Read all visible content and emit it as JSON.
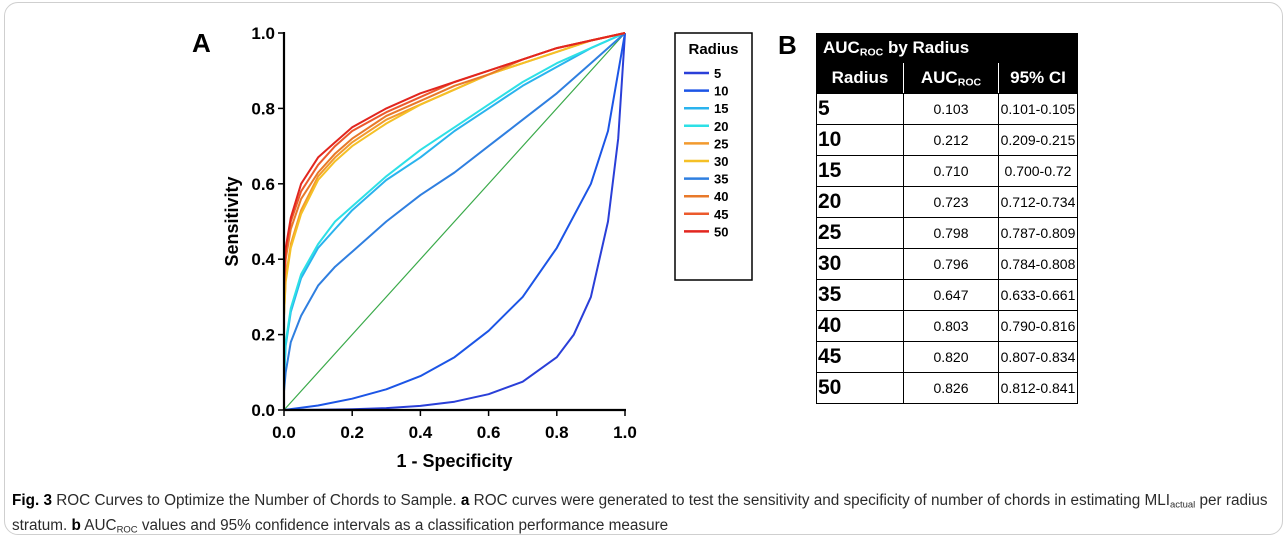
{
  "panel_a_letter": "A",
  "panel_b_letter": "B",
  "chart_data": {
    "type": "line",
    "xlabel": "1 - Specificity",
    "ylabel": "Sensitivity",
    "xlim": [
      0,
      1
    ],
    "ylim": [
      0,
      1
    ],
    "xticks": [
      "0.0",
      "0.2",
      "0.4",
      "0.6",
      "0.8",
      "1.0"
    ],
    "yticks": [
      "0.0",
      "0.2",
      "0.4",
      "0.6",
      "0.8",
      "1.0"
    ],
    "legend_title": "Radius",
    "legend_position": "right",
    "reference_line": {
      "x": [
        0,
        1
      ],
      "y": [
        0,
        1
      ],
      "color": "#3aaa4a"
    },
    "series": [
      {
        "name": "5",
        "color": "#2a3fd8",
        "x": [
          0,
          0.1,
          0.2,
          0.3,
          0.4,
          0.5,
          0.6,
          0.7,
          0.8,
          0.85,
          0.9,
          0.95,
          0.98,
          1.0
        ],
        "y": [
          0,
          0.0005,
          0.002,
          0.005,
          0.011,
          0.022,
          0.042,
          0.075,
          0.14,
          0.2,
          0.3,
          0.5,
          0.72,
          1.0
        ]
      },
      {
        "name": "10",
        "color": "#1c55e6",
        "x": [
          0,
          0.1,
          0.2,
          0.3,
          0.4,
          0.5,
          0.6,
          0.7,
          0.8,
          0.9,
          0.95,
          1.0
        ],
        "y": [
          0,
          0.012,
          0.03,
          0.055,
          0.09,
          0.14,
          0.21,
          0.3,
          0.43,
          0.6,
          0.74,
          1.0
        ]
      },
      {
        "name": "15",
        "color": "#2ab3ee",
        "x": [
          0,
          0.005,
          0.02,
          0.05,
          0.1,
          0.15,
          0.2,
          0.3,
          0.4,
          0.5,
          0.6,
          0.7,
          0.8,
          0.9,
          1.0
        ],
        "y": [
          0.08,
          0.17,
          0.26,
          0.35,
          0.43,
          0.48,
          0.53,
          0.61,
          0.67,
          0.74,
          0.8,
          0.86,
          0.91,
          0.96,
          1.0
        ]
      },
      {
        "name": "20",
        "color": "#2de0e6",
        "x": [
          0,
          0.005,
          0.02,
          0.05,
          0.1,
          0.15,
          0.2,
          0.3,
          0.4,
          0.5,
          0.6,
          0.7,
          0.8,
          0.9,
          1.0
        ],
        "y": [
          0.08,
          0.18,
          0.27,
          0.36,
          0.44,
          0.5,
          0.54,
          0.62,
          0.69,
          0.75,
          0.81,
          0.87,
          0.92,
          0.96,
          1.0
        ]
      },
      {
        "name": "25",
        "color": "#f29a2e",
        "x": [
          0,
          0.005,
          0.02,
          0.05,
          0.1,
          0.15,
          0.2,
          0.3,
          0.4,
          0.5,
          0.6,
          0.7,
          0.8,
          0.9,
          1.0
        ],
        "y": [
          0.25,
          0.35,
          0.44,
          0.53,
          0.62,
          0.67,
          0.71,
          0.77,
          0.81,
          0.85,
          0.89,
          0.92,
          0.95,
          0.98,
          1.0
        ]
      },
      {
        "name": "30",
        "color": "#f5c026",
        "x": [
          0,
          0.005,
          0.02,
          0.05,
          0.1,
          0.15,
          0.2,
          0.3,
          0.4,
          0.5,
          0.6,
          0.7,
          0.8,
          0.9,
          1.0
        ],
        "y": [
          0.25,
          0.34,
          0.43,
          0.52,
          0.61,
          0.66,
          0.7,
          0.76,
          0.81,
          0.85,
          0.89,
          0.92,
          0.95,
          0.98,
          1.0
        ]
      },
      {
        "name": "35",
        "color": "#2f7fe0",
        "x": [
          0,
          0.005,
          0.02,
          0.05,
          0.1,
          0.15,
          0.2,
          0.3,
          0.4,
          0.5,
          0.6,
          0.7,
          0.8,
          0.9,
          1.0
        ],
        "y": [
          0.05,
          0.1,
          0.18,
          0.25,
          0.33,
          0.38,
          0.42,
          0.5,
          0.57,
          0.63,
          0.7,
          0.77,
          0.84,
          0.92,
          1.0
        ]
      },
      {
        "name": "40",
        "color": "#e8792a",
        "x": [
          0,
          0.005,
          0.02,
          0.05,
          0.1,
          0.15,
          0.2,
          0.3,
          0.4,
          0.5,
          0.6,
          0.7,
          0.8,
          0.9,
          1.0
        ],
        "y": [
          0.3,
          0.4,
          0.48,
          0.56,
          0.63,
          0.68,
          0.72,
          0.78,
          0.82,
          0.86,
          0.89,
          0.93,
          0.96,
          0.98,
          1.0
        ]
      },
      {
        "name": "45",
        "color": "#ec5a2c",
        "x": [
          0,
          0.005,
          0.02,
          0.05,
          0.1,
          0.15,
          0.2,
          0.3,
          0.4,
          0.5,
          0.6,
          0.7,
          0.8,
          0.9,
          1.0
        ],
        "y": [
          0.33,
          0.42,
          0.5,
          0.58,
          0.65,
          0.7,
          0.74,
          0.79,
          0.83,
          0.87,
          0.9,
          0.93,
          0.96,
          0.98,
          1.0
        ]
      },
      {
        "name": "50",
        "color": "#e2261f",
        "x": [
          0,
          0.005,
          0.02,
          0.05,
          0.1,
          0.15,
          0.2,
          0.3,
          0.4,
          0.5,
          0.6,
          0.7,
          0.8,
          0.9,
          1.0
        ],
        "y": [
          0.35,
          0.43,
          0.51,
          0.6,
          0.67,
          0.71,
          0.75,
          0.8,
          0.84,
          0.87,
          0.9,
          0.93,
          0.96,
          0.98,
          1.0
        ]
      }
    ]
  },
  "table": {
    "title": "AUC",
    "title_sub": "ROC",
    "title_rest": " by Radius",
    "headers": {
      "radius": "Radius",
      "auc": "AUC",
      "auc_sub": "ROC",
      "ci": "95% CI"
    },
    "rows": [
      {
        "radius": "5",
        "auc": "0.103",
        "ci": "0.101-0.105"
      },
      {
        "radius": "10",
        "auc": "0.212",
        "ci": "0.209-0.215"
      },
      {
        "radius": "15",
        "auc": "0.710",
        "ci": "0.700-0.72"
      },
      {
        "radius": "20",
        "auc": "0.723",
        "ci": "0.712-0.734"
      },
      {
        "radius": "25",
        "auc": "0.798",
        "ci": "0.787-0.809"
      },
      {
        "radius": "30",
        "auc": "0.796",
        "ci": "0.784-0.808"
      },
      {
        "radius": "35",
        "auc": "0.647",
        "ci": "0.633-0.661"
      },
      {
        "radius": "40",
        "auc": "0.803",
        "ci": "0.790-0.816"
      },
      {
        "radius": "45",
        "auc": "0.820",
        "ci": "0.807-0.834"
      },
      {
        "radius": "50",
        "auc": "0.826",
        "ci": "0.812-0.841"
      }
    ]
  },
  "caption": {
    "fig_label": "Fig. 3",
    "title": " ROC Curves to Optimize the Number of Chords to Sample. ",
    "a_label": "a",
    "a_text_1": " ROC curves were generated to test the sensitivity and specificity of number of chords in estimating MLI",
    "a_sub": "actual",
    "a_text_2": " per radius stratum. ",
    "b_label": "b",
    "b_text_1": " AUC",
    "b_sub": "ROC",
    "b_text_2": " values and 95% confidence intervals as a classification performance measure"
  }
}
